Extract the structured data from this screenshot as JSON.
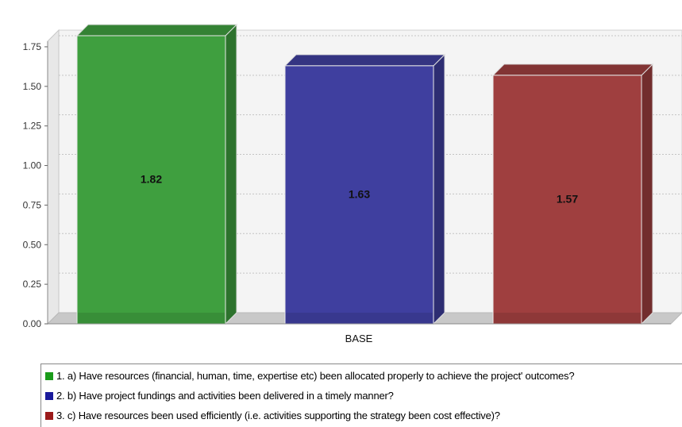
{
  "chart_data": {
    "type": "bar",
    "categories": [
      "BASE"
    ],
    "series": [
      {
        "name": "1. a) Have resources (financial, human, time, expertise etc) been allocated properly to achieve the project' outcomes?",
        "values": [
          1.82
        ],
        "color": "#3f9f3f",
        "value_label": "1.82"
      },
      {
        "name": "2. b) Have project fundings and activities been delivered in a timely manner?",
        "values": [
          1.63
        ],
        "color": "#3f3f9f",
        "value_label": "1.63"
      },
      {
        "name": "3. c) Have resources been used efficiently (i.e. activities supporting the strategy been cost effective)?",
        "values": [
          1.57
        ],
        "color": "#9f3f3f",
        "value_label": "1.57"
      }
    ],
    "title": "",
    "xlabel": "",
    "ylabel": "",
    "ylim": [
      0,
      1.8
    ],
    "yticks": [
      "0.00",
      "0.25",
      "0.50",
      "0.75",
      "1.00",
      "1.25",
      "1.50",
      "1.75"
    ],
    "grid": true,
    "legend_position": "bottom"
  },
  "legend": [
    {
      "label": "1. a) Have resources (financial, human, time, expertise etc) been allocated properly to achieve the project' outcomes?",
      "color": "#1a9b1a"
    },
    {
      "label": "2. b) Have project fundings and activities been delivered in a timely manner?",
      "color": "#1a1a9b"
    },
    {
      "label": "3. c) Have resources been used efficiently (i.e. activities supporting the strategy been cost effective)?",
      "color": "#9b1a1a"
    }
  ]
}
